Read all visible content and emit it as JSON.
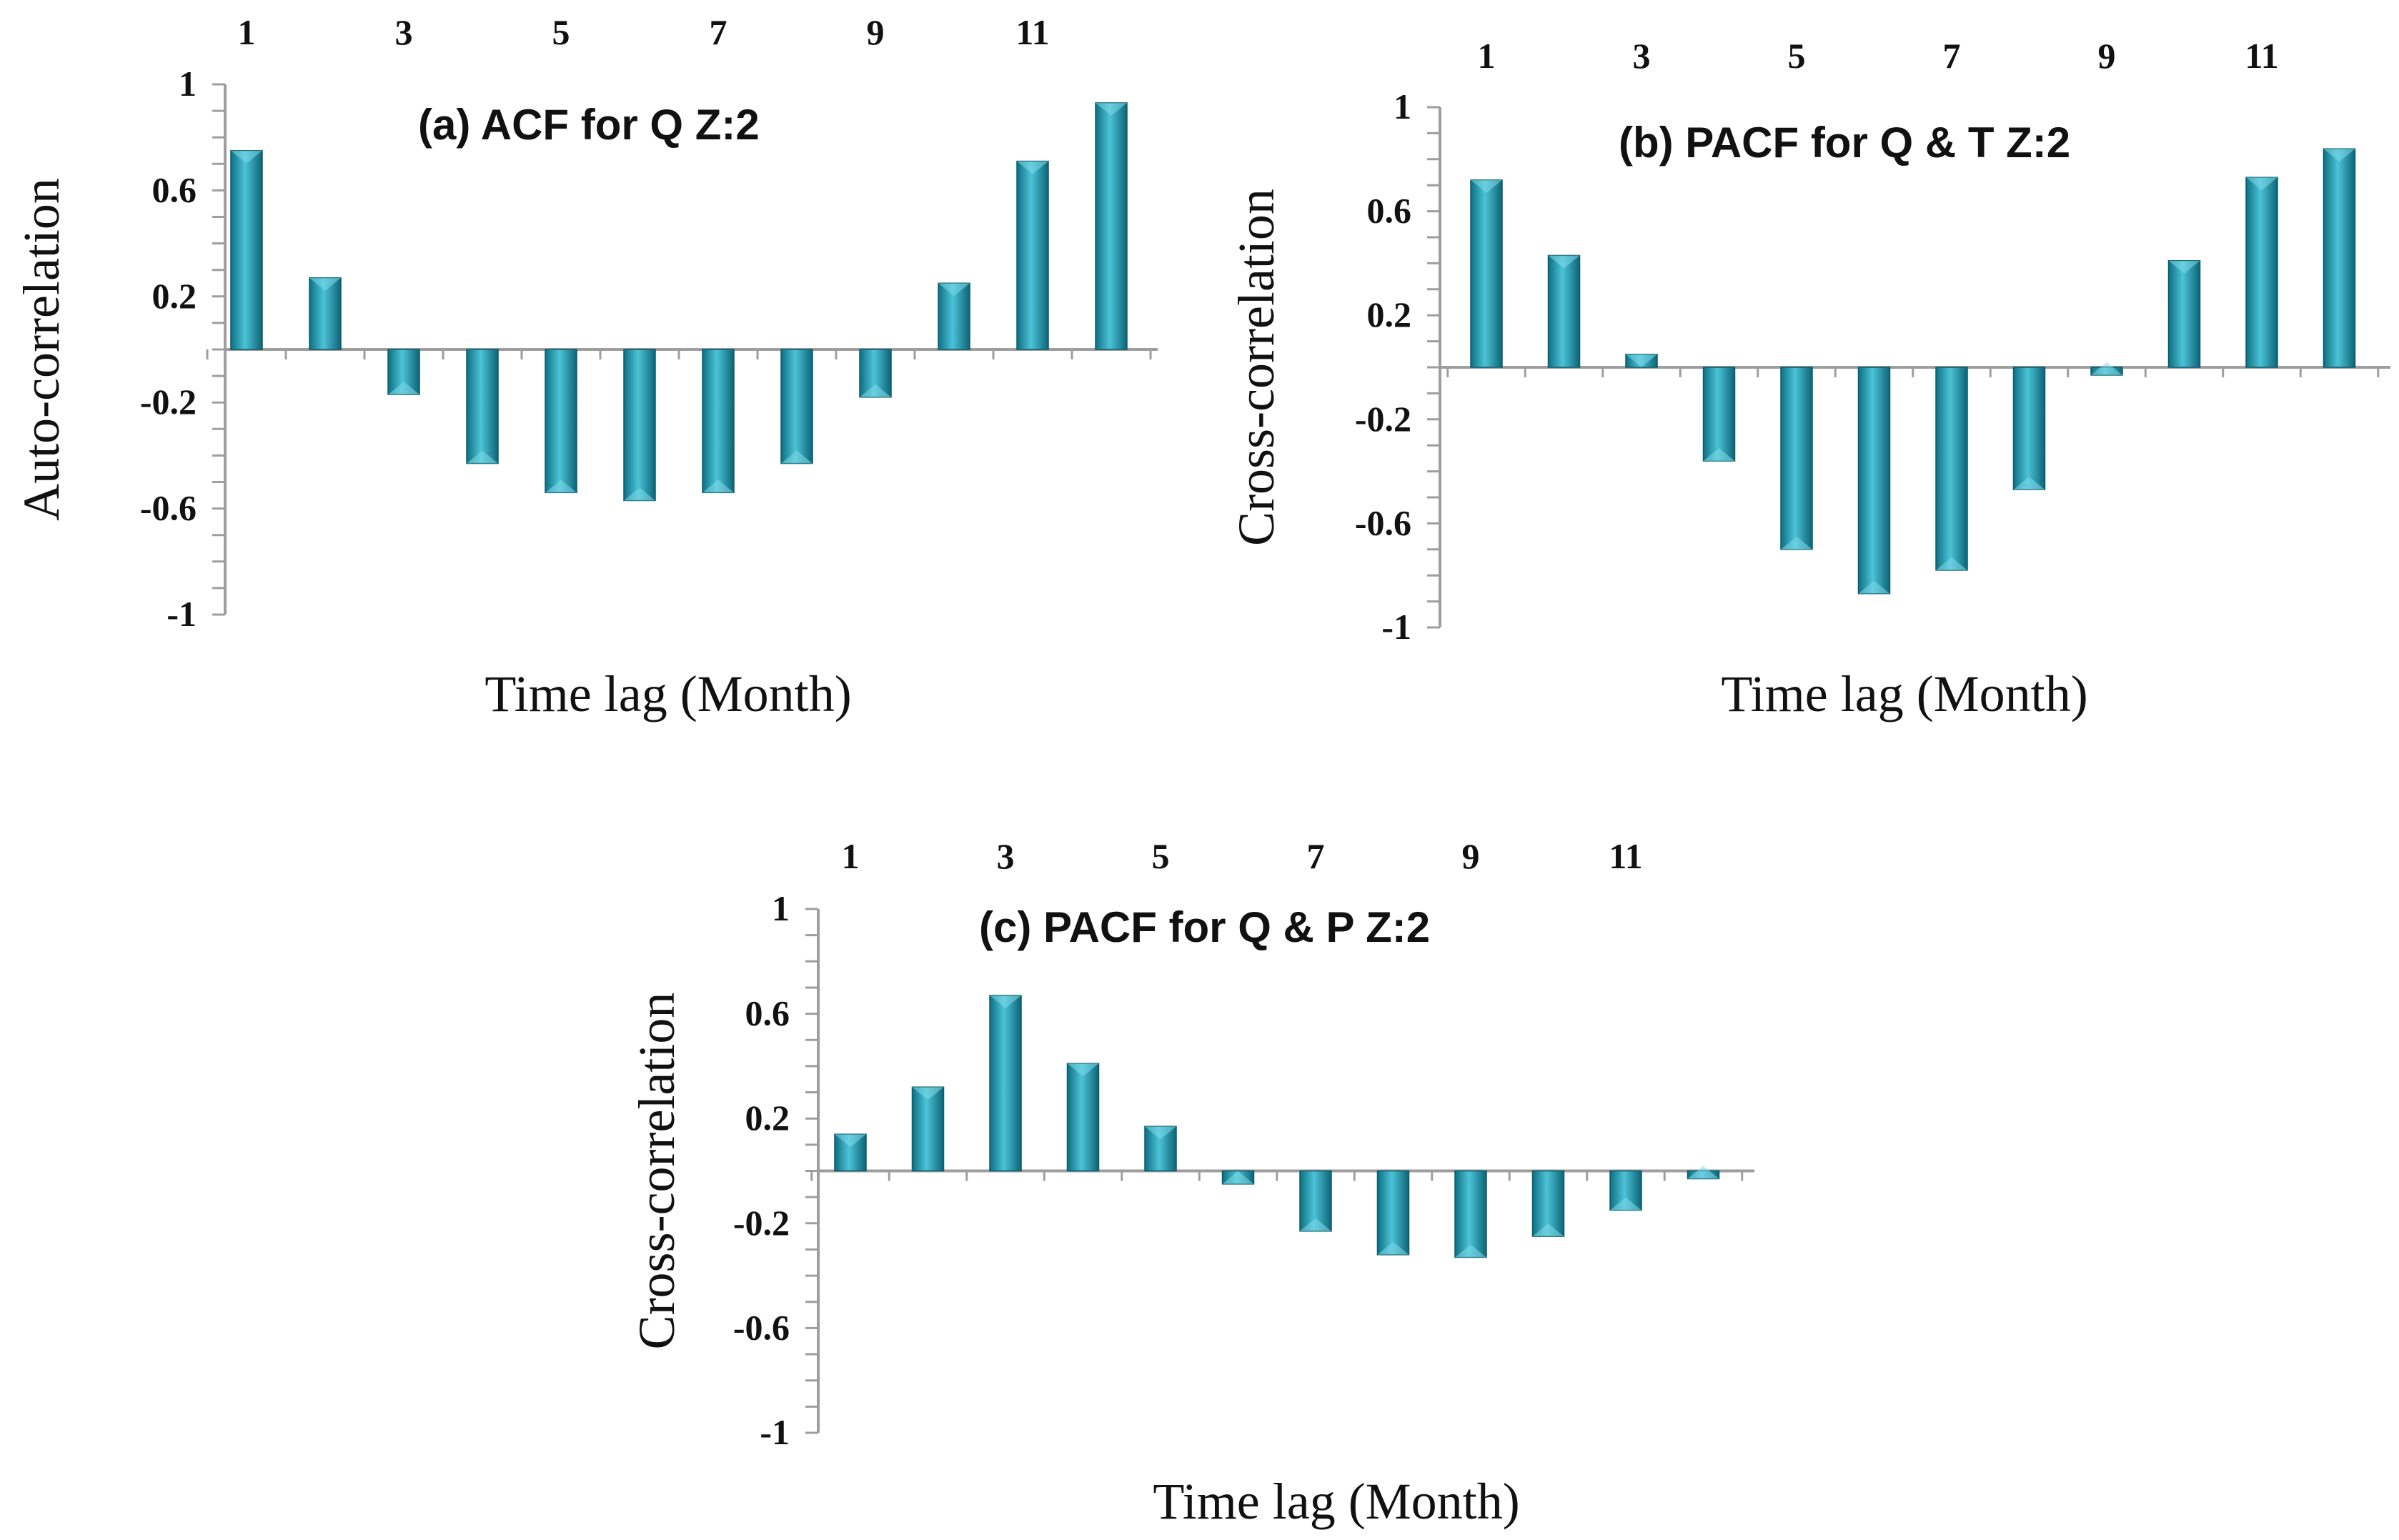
{
  "chart_data": [
    {
      "type": "bar",
      "title": "(a) ACF for Q Z:2",
      "xlabel": "Time lag (Month)",
      "ylabel": "Auto-correlation",
      "ylim": [
        -1,
        1
      ],
      "yticks": [
        "1",
        "0.6",
        "0.2",
        "-0.2",
        "-0.6",
        "-1"
      ],
      "xticks": [
        "1",
        "3",
        "5",
        "7",
        "9",
        "11"
      ],
      "categories": [
        1,
        2,
        3,
        4,
        5,
        6,
        7,
        8,
        9,
        10,
        11,
        12
      ],
      "values": [
        0.75,
        0.27,
        -0.17,
        -0.43,
        -0.54,
        -0.57,
        -0.54,
        -0.43,
        -0.18,
        0.25,
        0.71,
        0.93
      ],
      "color": "#1aa0b8"
    },
    {
      "type": "bar",
      "title": "(b) PACF for Q & T Z:2",
      "xlabel": "Time lag (Month)",
      "ylabel": "Cross-correlation",
      "ylim": [
        -1,
        1
      ],
      "yticks": [
        "1",
        "0.6",
        "0.2",
        "-0.2",
        "-0.6",
        "-1"
      ],
      "xticks": [
        "1",
        "3",
        "5",
        "7",
        "9",
        "11"
      ],
      "categories": [
        1,
        2,
        3,
        4,
        5,
        6,
        7,
        8,
        9,
        10,
        11,
        12
      ],
      "values": [
        0.72,
        0.43,
        0.05,
        -0.36,
        -0.7,
        -0.87,
        -0.78,
        -0.47,
        -0.03,
        0.41,
        0.73,
        0.84
      ],
      "color": "#1aa0b8"
    },
    {
      "type": "bar",
      "title": "(c) PACF for Q & P Z:2",
      "xlabel": "Time lag (Month)",
      "ylabel": "Cross-correlation",
      "ylim": [
        -1,
        1
      ],
      "yticks": [
        "1",
        "0.6",
        "0.2",
        "-0.2",
        "-0.6",
        "-1"
      ],
      "xticks": [
        "1",
        "3",
        "5",
        "7",
        "9",
        "11"
      ],
      "categories": [
        1,
        2,
        3,
        4,
        5,
        6,
        7,
        8,
        9,
        10,
        11,
        12
      ],
      "values": [
        0.14,
        0.32,
        0.67,
        0.41,
        0.17,
        -0.05,
        -0.23,
        -0.32,
        -0.33,
        -0.25,
        -0.15,
        -0.03
      ],
      "color": "#1aa0b8"
    }
  ]
}
